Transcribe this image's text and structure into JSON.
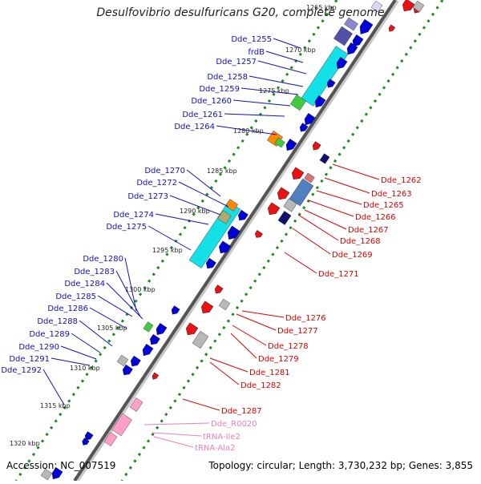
{
  "title": "Desulfovibrio desulfuricans G20, complete genome",
  "footer": {
    "accession": "Accession: NC_007519",
    "summary": "Topology: circular; Length: 3,730,232 bp; Genes: 3,855"
  },
  "colors": {
    "forward_label": "#1010c8",
    "reverse_label": "#e00000",
    "rna_label": "#f080b0",
    "backbone": "#555555",
    "tick": "#1a8a1a",
    "cds_forward": "#0000dd",
    "cds_reverse": "#ee1111",
    "cyan_block": "#14e0e8",
    "gray_block": "#b8b8b8",
    "pink_block": "#ff9ec8"
  },
  "kbp_labels": [
    "1265 kbp",
    "1270 kbp",
    "1275 kbp",
    "1280 kbp",
    "1285 kbp",
    "1290 kbp",
    "1295 kbp",
    "1300 kbp",
    "1305 kbp",
    "1310 kbp",
    "1315 kbp",
    "1320 kbp"
  ],
  "forward_genes": [
    "Dde_1255",
    "frdB",
    "Dde_1257",
    "Dde_1258",
    "Dde_1259",
    "Dde_1260",
    "Dde_1261",
    "Dde_1264",
    "Dde_1270",
    "Dde_1272",
    "Dde_1273",
    "Dde_1274",
    "Dde_1275",
    "Dde_1280",
    "Dde_1283",
    "Dde_1284",
    "Dde_1285",
    "Dde_1286",
    "Dde_1288",
    "Dde_1289",
    "Dde_1290",
    "Dde_1291",
    "Dde_1292"
  ],
  "reverse_genes": [
    "Dde_1262",
    "Dde_1263",
    "Dde_1265",
    "Dde_1266",
    "Dde_1267",
    "Dde_1268",
    "Dde_1269",
    "Dde_1271",
    "Dde_1276",
    "Dde_1277",
    "Dde_1278",
    "Dde_1279",
    "Dde_1281",
    "Dde_1282",
    "Dde_1287"
  ],
  "rna_genes": [
    "Dde_R0020",
    "tRNA-Ile2",
    "tRNA-Ala2"
  ]
}
